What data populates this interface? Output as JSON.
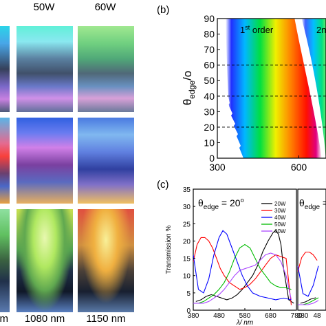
{
  "photos": {
    "top_labels": [
      "50W",
      "60W"
    ],
    "bottom_labels": [
      "m",
      "1080 nm",
      "1150 nm"
    ]
  },
  "panel_b": {
    "label": "(b)",
    "ylabel_main": "θ",
    "ylabel_sub": "edge",
    "ylabel_sup": "/o",
    "yticks": [
      "90",
      "80",
      "70",
      "60",
      "50",
      "40",
      "30",
      "20",
      "10",
      "0"
    ],
    "xticks": [
      "300",
      "600"
    ],
    "order1": "1st order",
    "order1_main": "1",
    "order1_sup": "st",
    "order1_rest": " order",
    "order2": "2n"
  },
  "panel_c": {
    "label": "(c)",
    "theta_main": "θ",
    "theta_sub": "edge",
    "theta_eq": " = 20",
    "theta_sup": "o",
    "theta2_main": "θ",
    "theta2_sub": "edge",
    "theta2_eq": " = ",
    "ylabel": "Transmission %",
    "xlabel": "λ/ nm",
    "yticks": [
      "35",
      "30",
      "25",
      "20",
      "15",
      "10",
      "5",
      "0"
    ],
    "xticks": [
      "380",
      "480",
      "580",
      "680",
      "780"
    ],
    "xticks2": [
      "380",
      "48"
    ]
  },
  "chart_data": [
    {
      "type": "heatmap",
      "panel": "(b)",
      "xlabel": "",
      "ylabel": "θedge/o",
      "xlim": [
        300,
        700
      ],
      "ylim": [
        0,
        90
      ],
      "dashed_lines_y": [
        20,
        40,
        60
      ],
      "annotations": [
        "1st order",
        "2n"
      ]
    },
    {
      "type": "line",
      "panel": "(c)",
      "title": "θedge = 20o",
      "xlabel": "λ/ nm",
      "ylabel": "Transmission %",
      "xlim": [
        380,
        780
      ],
      "ylim": [
        0,
        35
      ],
      "series": [
        {
          "name": "20W",
          "color": "#000000",
          "x": [
            390,
            410,
            430,
            450,
            470,
            490,
            510,
            530,
            550,
            570,
            590,
            610,
            630,
            650,
            670,
            690,
            700,
            710,
            720,
            730,
            750,
            770
          ],
          "y": [
            2.5,
            3,
            4,
            4.5,
            4,
            3.5,
            3,
            3.5,
            4.5,
            6,
            8,
            10,
            13,
            17,
            20,
            22.5,
            23,
            22,
            19,
            12,
            3,
            2
          ]
        },
        {
          "name": "30W",
          "color": "#ff0000",
          "x": [
            380,
            395,
            410,
            425,
            440,
            455,
            470,
            485,
            500,
            520,
            540,
            560,
            580,
            600,
            620,
            640,
            660,
            680,
            700,
            720,
            740,
            760
          ],
          "y": [
            14,
            19,
            21,
            21,
            20,
            18,
            15,
            12,
            10,
            8,
            7,
            6,
            6.5,
            7.5,
            9,
            11,
            13,
            15,
            16,
            15.5,
            15,
            1.5
          ]
        },
        {
          "name": "40W",
          "color": "#0000ff",
          "x": [
            380,
            400,
            420,
            440,
            460,
            480,
            495,
            510,
            530,
            550,
            570,
            590,
            610,
            640,
            670,
            700,
            730,
            760
          ],
          "y": [
            16,
            6,
            5,
            9,
            16,
            21,
            23,
            22,
            18,
            14,
            10,
            7,
            5,
            4,
            3.5,
            3,
            3.5,
            3
          ]
        },
        {
          "name": "50W",
          "color": "#00bb00",
          "x": [
            380,
            400,
            420,
            440,
            460,
            480,
            500,
            520,
            540,
            560,
            580,
            600,
            620,
            640,
            660,
            680,
            700,
            720,
            740,
            760
          ],
          "y": [
            2,
            2,
            2.5,
            3.5,
            4.5,
            6,
            8,
            11,
            15,
            18,
            19,
            18,
            15,
            12,
            10,
            8,
            7,
            6.5,
            6.5,
            6
          ]
        },
        {
          "name": "60W",
          "color": "#aa44ff",
          "x": [
            380,
            400,
            420,
            440,
            460,
            480,
            500,
            520,
            540,
            560,
            580,
            600,
            620,
            640,
            660,
            680,
            700,
            720,
            740,
            760
          ],
          "y": [
            2,
            2,
            2,
            2.5,
            3.5,
            4.5,
            6,
            8,
            10,
            11.5,
            12,
            12.5,
            13,
            14.5,
            16,
            16.5,
            16,
            14,
            10,
            3
          ]
        }
      ]
    }
  ]
}
